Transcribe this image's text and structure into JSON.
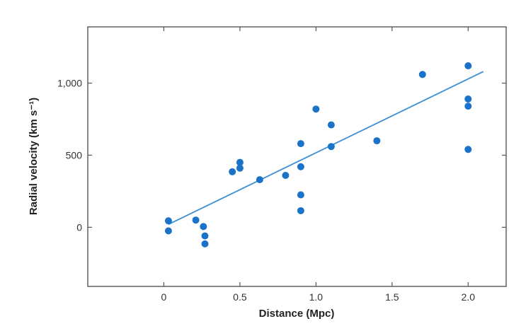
{
  "chart_data": {
    "type": "scatter",
    "title": "",
    "xlabel": "Distance (Mpc)",
    "ylabel": "Radial velocity (km s⁻¹)",
    "xlim": [
      -0.5,
      2.25
    ],
    "ylim": [
      -410,
      1390
    ],
    "x_ticks": [
      0,
      0.5,
      1.0,
      1.5,
      2.0
    ],
    "x_tick_labels": [
      "0",
      "0.5",
      "1.0",
      "1.5",
      "2.0"
    ],
    "y_ticks": [
      0,
      500,
      1000
    ],
    "y_tick_labels": [
      "0",
      "500",
      "1,000"
    ],
    "grid": false,
    "legend": "none",
    "point_color": "#1a73c8",
    "line_color": "#3a8fd6",
    "points": [
      {
        "x": 0.03,
        "y": 45
      },
      {
        "x": 0.03,
        "y": -25
      },
      {
        "x": 0.21,
        "y": 50
      },
      {
        "x": 0.26,
        "y": 5
      },
      {
        "x": 0.27,
        "y": -60
      },
      {
        "x": 0.27,
        "y": -115
      },
      {
        "x": 0.45,
        "y": 385
      },
      {
        "x": 0.5,
        "y": 450
      },
      {
        "x": 0.5,
        "y": 410
      },
      {
        "x": 0.63,
        "y": 330
      },
      {
        "x": 0.8,
        "y": 360
      },
      {
        "x": 0.9,
        "y": 580
      },
      {
        "x": 0.9,
        "y": 420
      },
      {
        "x": 0.9,
        "y": 225
      },
      {
        "x": 0.9,
        "y": 115
      },
      {
        "x": 1.0,
        "y": 820
      },
      {
        "x": 1.1,
        "y": 710
      },
      {
        "x": 1.1,
        "y": 560
      },
      {
        "x": 1.4,
        "y": 600
      },
      {
        "x": 1.7,
        "y": 1060
      },
      {
        "x": 2.0,
        "y": 1120
      },
      {
        "x": 2.0,
        "y": 890
      },
      {
        "x": 2.0,
        "y": 840
      },
      {
        "x": 2.0,
        "y": 540
      }
    ],
    "trend_line": {
      "x": [
        0.03,
        2.1
      ],
      "y": [
        20,
        1080
      ]
    }
  }
}
